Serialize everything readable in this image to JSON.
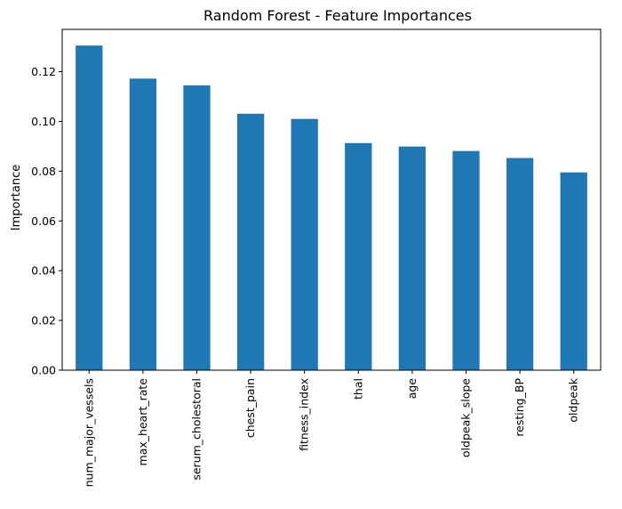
{
  "chart_data": {
    "type": "bar",
    "title": "Random Forest - Feature Importances",
    "xlabel": "",
    "ylabel": "Importance",
    "categories": [
      "num_major_vessels",
      "max_heart_rate",
      "serum_cholestoral",
      "chest_pain",
      "fitness_index",
      "thal",
      "age",
      "oldpeak_slope",
      "resting_BP",
      "oldpeak"
    ],
    "values": [
      0.1305,
      0.1172,
      0.1145,
      0.1031,
      0.101,
      0.0913,
      0.0899,
      0.0881,
      0.0853,
      0.0795
    ],
    "ylim": [
      0,
      0.137
    ],
    "yticks": [
      0.0,
      0.02,
      0.04,
      0.06,
      0.08,
      0.1,
      0.12
    ],
    "ytick_labels": [
      "0.00",
      "0.02",
      "0.04",
      "0.06",
      "0.08",
      "0.10",
      "0.12"
    ],
    "grid": false,
    "bar_color": "#1f77b4"
  }
}
